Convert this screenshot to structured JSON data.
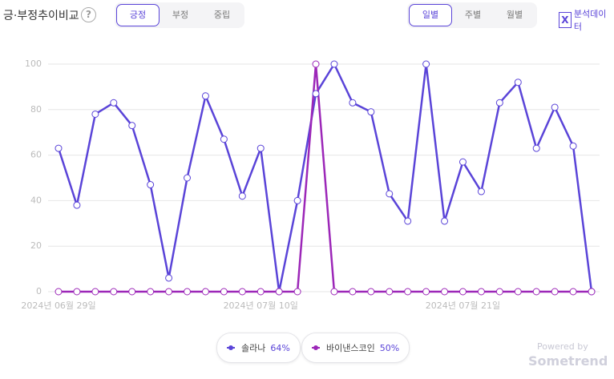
{
  "header": {
    "title": "긍·부정추이비교",
    "help": "?",
    "sentiment_tabs": [
      "긍정",
      "부정",
      "중립"
    ],
    "sentiment_selected": "긍정",
    "period_tabs": [
      "일별",
      "주별",
      "월별"
    ],
    "period_selected": "일별",
    "export_icon": "X",
    "export": "분석데이터"
  },
  "chart_data": {
    "type": "line",
    "categories": [
      "2024년 06월 29일",
      null,
      null,
      null,
      null,
      null,
      null,
      null,
      null,
      null,
      null,
      "2024년 07월 10일",
      null,
      null,
      null,
      null,
      null,
      null,
      null,
      null,
      null,
      null,
      "2024년 07월 21일",
      null,
      null,
      null,
      null,
      null,
      null,
      null
    ],
    "series": [
      {
        "name": "솔라나",
        "share": "64%",
        "color": "#5a44d8",
        "values": [
          63,
          38,
          78,
          83,
          73,
          47,
          6,
          50,
          86,
          67,
          42,
          63,
          0,
          40,
          87,
          100,
          83,
          79,
          43,
          31,
          100,
          31,
          57,
          44,
          83,
          92,
          63,
          81,
          64,
          0
        ]
      },
      {
        "name": "바이낸스코인",
        "share": "50%",
        "color": "#9c27b8",
        "values": [
          0,
          0,
          0,
          0,
          0,
          0,
          0,
          0,
          0,
          0,
          0,
          0,
          0,
          0,
          100,
          0,
          0,
          0,
          0,
          0,
          0,
          0,
          0,
          0,
          0,
          0,
          0,
          0,
          0,
          0
        ]
      }
    ],
    "ylim": [
      0,
      100
    ],
    "yticks": [
      0,
      20,
      40,
      60,
      80,
      100
    ],
    "grid": true
  },
  "footer": {
    "powered": "Powered by",
    "brand": "Sometrend"
  }
}
